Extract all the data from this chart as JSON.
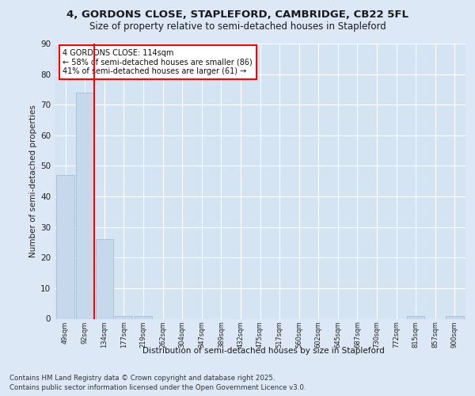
{
  "title1": "4, GORDONS CLOSE, STAPLEFORD, CAMBRIDGE, CB22 5FL",
  "title2": "Size of property relative to semi-detached houses in Stapleford",
  "xlabel": "Distribution of semi-detached houses by size in Stapleford",
  "ylabel": "Number of semi-detached properties",
  "categories": [
    "49sqm",
    "92sqm",
    "134sqm",
    "177sqm",
    "219sqm",
    "262sqm",
    "304sqm",
    "347sqm",
    "389sqm",
    "432sqm",
    "475sqm",
    "517sqm",
    "560sqm",
    "602sqm",
    "645sqm",
    "687sqm",
    "730sqm",
    "772sqm",
    "815sqm",
    "857sqm",
    "900sqm"
  ],
  "values": [
    47,
    74,
    26,
    1,
    1,
    0,
    0,
    0,
    0,
    0,
    0,
    0,
    0,
    0,
    0,
    0,
    0,
    0,
    1,
    0,
    1
  ],
  "bar_color": "#c6d9ec",
  "bar_edge_color": "#9ab8d0",
  "red_line_x": 1.5,
  "annotation_title": "4 GORDONS CLOSE: 114sqm",
  "annotation_line1": "← 58% of semi-detached houses are smaller (86)",
  "annotation_line2": "41% of semi-detached houses are larger (61) →",
  "footer1": "Contains HM Land Registry data © Crown copyright and database right 2025.",
  "footer2": "Contains public sector information licensed under the Open Government Licence v3.0.",
  "ylim": [
    0,
    90
  ],
  "yticks": [
    0,
    10,
    20,
    30,
    40,
    50,
    60,
    70,
    80,
    90
  ],
  "bg_color": "#dce8f5",
  "plot_bg_color": "#d5e4f2",
  "title_fontsize": 9.5,
  "subtitle_fontsize": 8.5
}
